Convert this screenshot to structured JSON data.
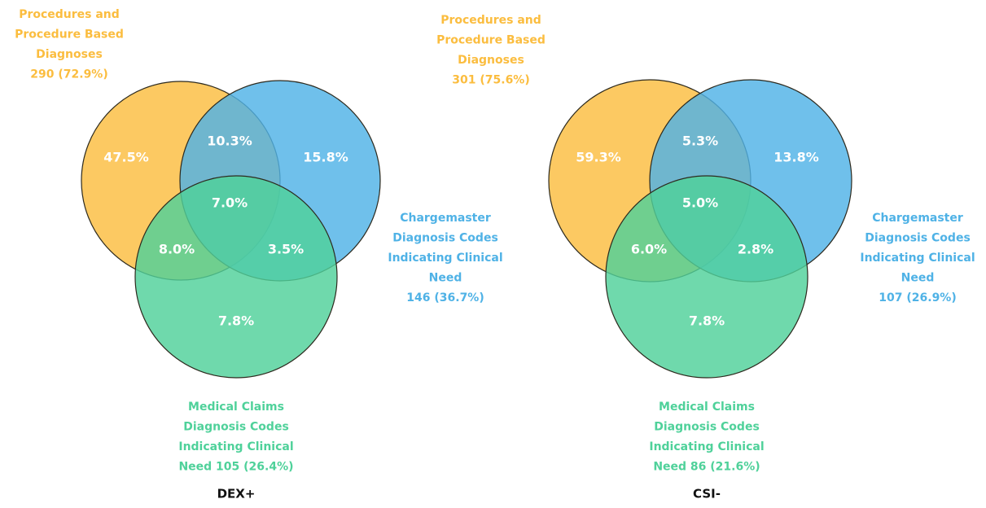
{
  "diagrams": [
    {
      "title": "DEX+",
      "sets": [
        {
          "lines": [
            "Procedures and",
            "Procedure Based",
            "Diagnoses",
            "290 (72.9%)"
          ]
        },
        {
          "lines": [
            "Chargemaster",
            "Diagnosis Codes",
            "Indicating Clinical",
            "Need",
            "146 (36.7%)"
          ]
        },
        {
          "lines": [
            "Medical Claims",
            "Diagnosis Codes",
            "Indicating Clinical",
            "Need 105 (26.4%)"
          ]
        }
      ],
      "regions": [
        "47.5%",
        "10.3%",
        "15.8%",
        "7.0%",
        "8.0%",
        "3.5%",
        "7.8%"
      ]
    },
    {
      "title": "CSI-",
      "sets": [
        {
          "lines": [
            "Procedures and",
            "Procedure Based",
            "Diagnoses",
            "301 (75.6%)"
          ]
        },
        {
          "lines": [
            "Chargemaster",
            "Diagnosis Codes",
            "Indicating Clinical",
            "Need",
            "107 (26.9%)"
          ]
        },
        {
          "lines": [
            "Medical Claims",
            "Diagnosis Codes",
            "Indicating Clinical",
            "Need 86 (21.6%)"
          ]
        }
      ],
      "regions": [
        "59.3%",
        "5.3%",
        "13.8%",
        "5.0%",
        "6.0%",
        "2.8%",
        "7.8%"
      ]
    }
  ]
}
